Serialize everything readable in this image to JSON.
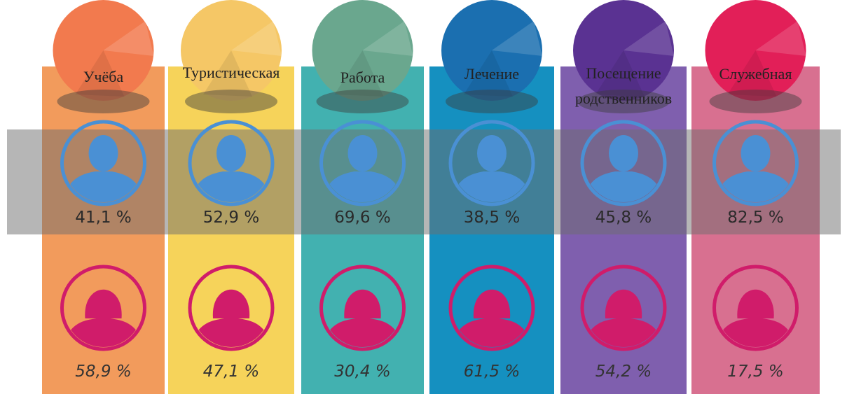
{
  "columns": [
    {
      "label": [
        "Учёба"
      ],
      "male": "41,1 %",
      "female": "58,9 %",
      "color": "#f29b5c",
      "ball": "#f27a4e"
    },
    {
      "label": [
        "Туристическая"
      ],
      "male": "52,9 %",
      "female": "47,1 %",
      "color": "#f6d35a",
      "ball": "#f5c766"
    },
    {
      "label": [
        "Работа"
      ],
      "male": "69,6 %",
      "female": "30,4 %",
      "color": "#42b1b0",
      "ball": "#6aa78e"
    },
    {
      "label": [
        "Лечение"
      ],
      "male": "38,5 %",
      "female": "61,5 %",
      "color": "#1590c0",
      "ball": "#1b6fb0"
    },
    {
      "label": [
        "Посещение",
        "родственников"
      ],
      "male": "45,8 %",
      "female": "54,2 %",
      "color": "#7f5fae",
      "ball": "#5a3292"
    },
    {
      "label": [
        "Служебная"
      ],
      "male": "82,5 %",
      "female": "17,5 %",
      "color": "#d87090",
      "ball": "#e21f58"
    }
  ]
}
